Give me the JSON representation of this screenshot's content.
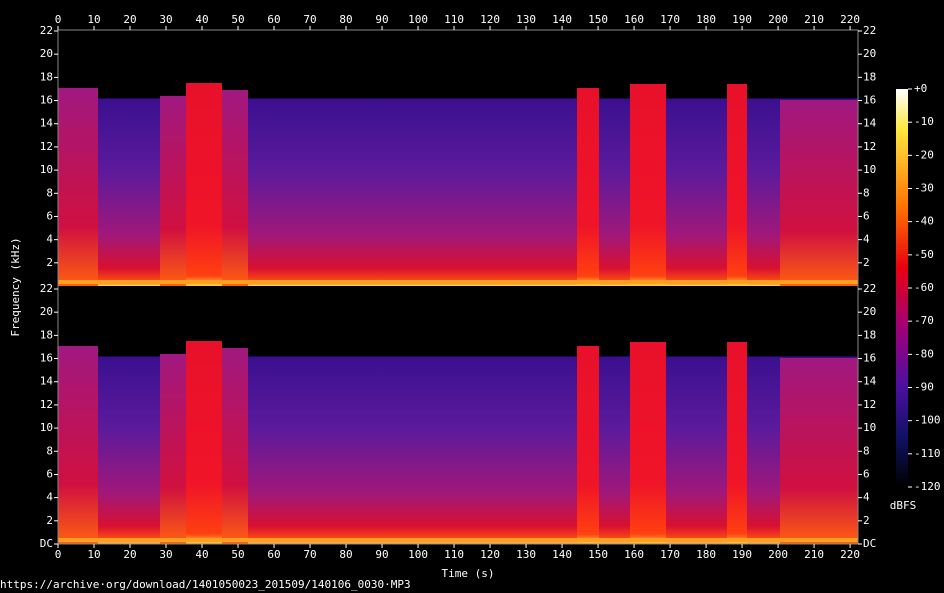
{
  "chart_data": {
    "type": "spectrogram",
    "xlabel": "Time (s)",
    "ylabel": "Frequency (kHz)",
    "xlim": [
      0,
      222.2
    ],
    "xticks": [
      0,
      10,
      20,
      30,
      40,
      50,
      60,
      70,
      80,
      90,
      100,
      110,
      120,
      130,
      140,
      150,
      160,
      170,
      180,
      190,
      200,
      210,
      220
    ],
    "panels": [
      {
        "ylim": [
          0,
          22
        ],
        "yticks": [
          2,
          4,
          6,
          8,
          10,
          12,
          14,
          16,
          18,
          20,
          22
        ]
      },
      {
        "ylim": [
          0,
          22
        ],
        "yticks": [
          {
            "value": 0,
            "label": "DC"
          },
          2,
          4,
          6,
          8,
          10,
          12,
          14,
          16,
          18,
          20,
          22
        ]
      }
    ],
    "colorbar": {
      "label": "dBFS",
      "lim": [
        -120,
        0
      ],
      "ticks": [
        {
          "value": 0,
          "label": "+0"
        },
        -10,
        -20,
        -30,
        -40,
        -50,
        -60,
        -70,
        -80,
        -90,
        -100,
        -110,
        -120
      ]
    }
  },
  "footer": "https://archive·org/download/1401050023_201509/140106_0030·MP3"
}
